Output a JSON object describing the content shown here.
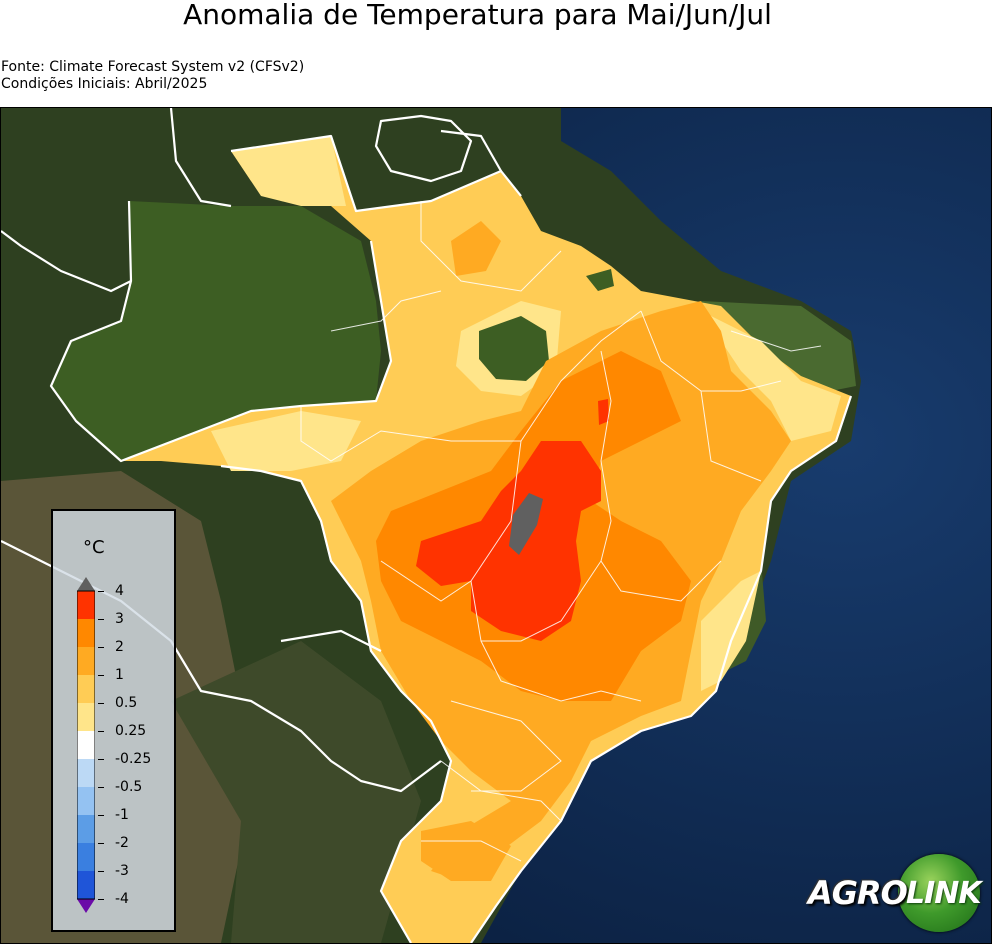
{
  "header": {
    "title": "Anomalia de Temperatura para Mai/Jun/Jul",
    "source": "Fonte: Climate Forecast System v2 (CFSv2)",
    "initial_conditions": "Condições Iniciais: Abril/2025"
  },
  "legend": {
    "unit": "°C",
    "ticks": [
      "4",
      "3",
      "2",
      "1",
      "0.5",
      "0.25",
      "-0.25",
      "-0.5",
      "-1",
      "-2",
      "-3",
      "-4"
    ],
    "colors": [
      "#ff3300",
      "#ff8800",
      "#ffaa22",
      "#ffcc55",
      "#ffe58a",
      "#ffffff",
      "#bcd9f5",
      "#94c2f2",
      "#5c9de6",
      "#3a7fe0",
      "#1f55d8",
      "#7a16b4"
    ],
    "over_color": "#606060",
    "under_color": "#6a0aa8"
  },
  "logo": {
    "left_text": "AGRO",
    "right_text": "LINK"
  },
  "colors": {
    "ocean": "#0f2a52",
    "land_dark": "#2e4020",
    "land_mid": "#4f5a35",
    "forest": "#3d5e23",
    "border": "#ffffff",
    "anom_025_05": "#ffe58a",
    "anom_05_1": "#ffcc55",
    "anom_1_2": "#ffaa22",
    "anom_2_3": "#ff8800",
    "anom_3_4": "#ff3300",
    "anom_over_4": "#606060"
  }
}
